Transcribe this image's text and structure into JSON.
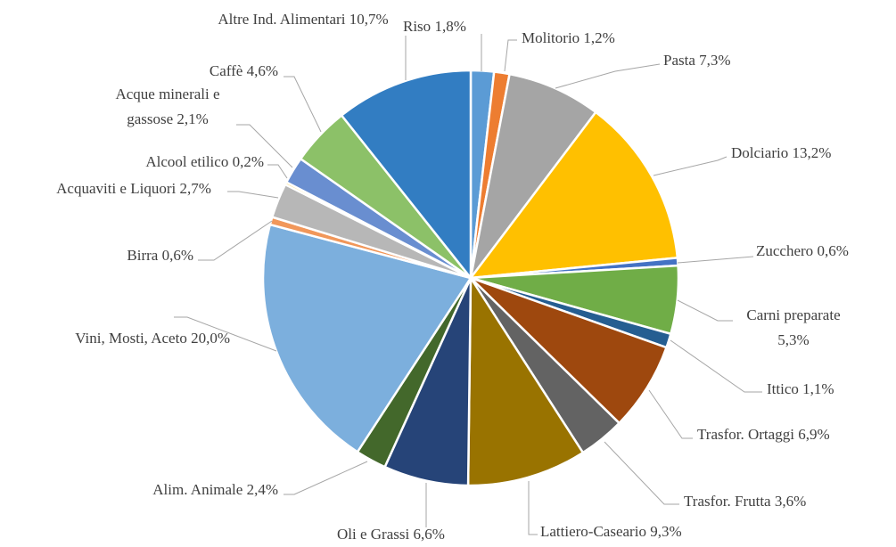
{
  "chart_data": {
    "type": "pie",
    "categories": [
      "Riso",
      "Molitorio",
      "Pasta",
      "Dolciario",
      "Zucchero",
      "Carni preparate",
      "Ittico",
      "Trasfor. Ortaggi",
      "Trasfor. Frutta",
      "Lattiero-Caseario",
      "Oli e Grassi",
      "Alim. Animale",
      "Vini, Mosti, Aceto",
      "Birra",
      "Acquaviti e Liquori",
      "Alcool etilico",
      "Acque minerali e gassose",
      "Caffè",
      "Altre Ind. Alimentari"
    ],
    "values": [
      1.8,
      1.2,
      7.3,
      13.2,
      0.6,
      5.3,
      1.1,
      6.9,
      3.6,
      9.3,
      6.6,
      2.4,
      20.0,
      0.6,
      2.7,
      0.2,
      2.1,
      4.6,
      10.7
    ],
    "value_labels": [
      "1,8%",
      "1,2%",
      "7,3%",
      "13,2%",
      "0,6%",
      "5,3%",
      "1,1%",
      "6,9%",
      "3,6%",
      "9,3%",
      "6,6%",
      "2,4%",
      "20,0%",
      "0,6%",
      "2,7%",
      "0,2%",
      "2,1%",
      "4,6%",
      "10,7%"
    ],
    "colors": [
      "#5B9BD5",
      "#ED7D31",
      "#A5A5A5",
      "#FFC000",
      "#4472C4",
      "#70AD47",
      "#255E91",
      "#9E480E",
      "#636363",
      "#997300",
      "#264478",
      "#43682B",
      "#7CAFDD",
      "#F1975A",
      "#B7B7B7",
      "#FFCD33",
      "#698ED0",
      "#8CC168",
      "#327DC2"
    ]
  }
}
